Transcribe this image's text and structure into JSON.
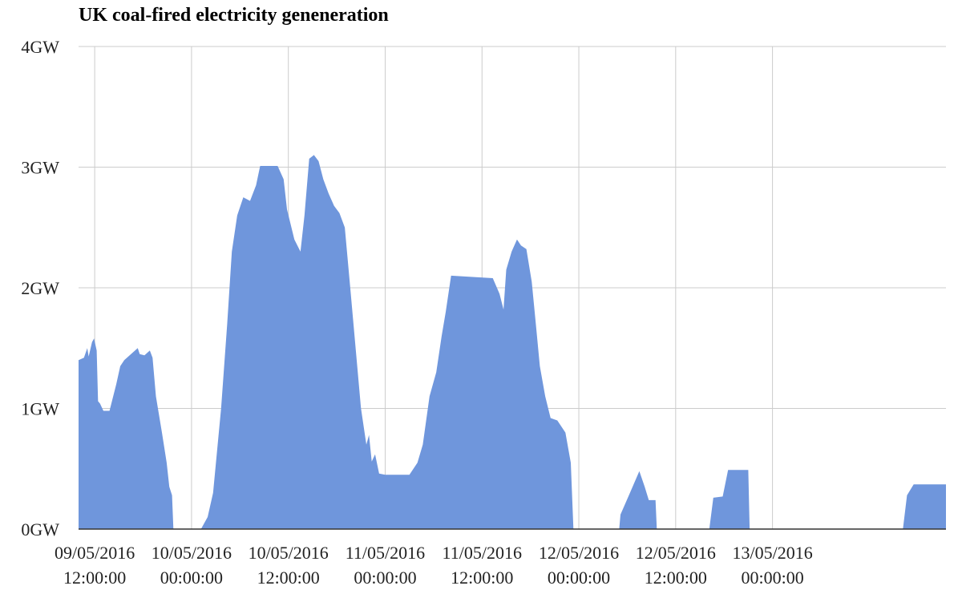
{
  "chart_data": {
    "type": "area",
    "title": "UK coal-fired electricity geneneration",
    "xlabel": "",
    "ylabel": "",
    "unit": "GW",
    "ylim": [
      0,
      4
    ],
    "grid": true,
    "colors": {
      "fill": "#6f96dc",
      "axis": "#333333",
      "grid": "#cccccc"
    },
    "y_ticks": [
      {
        "value": 0,
        "label": "0GW"
      },
      {
        "value": 1,
        "label": "1GW"
      },
      {
        "value": 2,
        "label": "2GW"
      },
      {
        "value": 3,
        "label": "3GW"
      },
      {
        "value": 4,
        "label": "4GW"
      }
    ],
    "x_range": [
      "2016-05-09 10:00",
      "2016-05-13 21:30"
    ],
    "x_ticks": [
      {
        "x": "2016-05-09 12:00",
        "date": "09/05/2016",
        "time": "12:00:00"
      },
      {
        "x": "2016-05-10 00:00",
        "date": "10/05/2016",
        "time": "00:00:00"
      },
      {
        "x": "2016-05-10 12:00",
        "date": "10/05/2016",
        "time": "12:00:00"
      },
      {
        "x": "2016-05-11 00:00",
        "date": "11/05/2016",
        "time": "00:00:00"
      },
      {
        "x": "2016-05-11 12:00",
        "date": "11/05/2016",
        "time": "12:00:00"
      },
      {
        "x": "2016-05-12 00:00",
        "date": "12/05/2016",
        "time": "00:00:00"
      },
      {
        "x": "2016-05-12 12:00",
        "date": "12/05/2016",
        "time": "12:00:00"
      },
      {
        "x": "2016-05-13 00:00",
        "date": "13/05/2016",
        "time": "00:00:00"
      }
    ],
    "series": [
      {
        "points": [
          [
            "2016-05-09 10:00",
            1.4
          ],
          [
            "2016-05-09 10:40",
            1.42
          ],
          [
            "2016-05-09 11:05",
            1.5
          ],
          [
            "2016-05-09 11:15",
            1.43
          ],
          [
            "2016-05-09 11:40",
            1.55
          ],
          [
            "2016-05-09 11:55",
            1.58
          ],
          [
            "2016-05-09 12:15",
            1.48
          ],
          [
            "2016-05-09 12:25",
            1.06
          ],
          [
            "2016-05-09 12:40",
            1.04
          ],
          [
            "2016-05-09 13:05",
            0.98
          ],
          [
            "2016-05-09 13:50",
            0.98
          ],
          [
            "2016-05-09 14:40",
            1.2
          ],
          [
            "2016-05-09 15:10",
            1.35
          ],
          [
            "2016-05-09 15:40",
            1.4
          ],
          [
            "2016-05-09 16:30",
            1.45
          ],
          [
            "2016-05-09 17:20",
            1.5
          ],
          [
            "2016-05-09 17:35",
            1.45
          ],
          [
            "2016-05-09 18:10",
            1.44
          ],
          [
            "2016-05-09 18:50",
            1.48
          ],
          [
            "2016-05-09 19:10",
            1.42
          ],
          [
            "2016-05-09 19:35",
            1.1
          ],
          [
            "2016-05-09 20:20",
            0.8
          ],
          [
            "2016-05-09 20:55",
            0.55
          ],
          [
            "2016-05-09 21:15",
            0.35
          ],
          [
            "2016-05-09 21:35",
            0.28
          ],
          [
            "2016-05-09 21:45",
            0
          ],
          [
            "2016-05-10 01:10",
            0
          ],
          [
            "2016-05-10 02:00",
            0.1
          ],
          [
            "2016-05-10 02:40",
            0.3
          ],
          [
            "2016-05-10 03:40",
            1.0
          ],
          [
            "2016-05-10 04:25",
            1.7
          ],
          [
            "2016-05-10 05:00",
            2.3
          ],
          [
            "2016-05-10 05:40",
            2.6
          ],
          [
            "2016-05-10 06:25",
            2.75
          ],
          [
            "2016-05-10 07:15",
            2.72
          ],
          [
            "2016-05-10 08:00",
            2.85
          ],
          [
            "2016-05-10 08:30",
            3.01
          ],
          [
            "2016-05-10 10:40",
            3.01
          ],
          [
            "2016-05-10 11:25",
            2.9
          ],
          [
            "2016-05-10 11:50",
            2.65
          ],
          [
            "2016-05-10 12:45",
            2.4
          ],
          [
            "2016-05-10 13:30",
            2.3
          ],
          [
            "2016-05-10 14:00",
            2.6
          ],
          [
            "2016-05-10 14:35",
            3.07
          ],
          [
            "2016-05-10 15:10",
            3.1
          ],
          [
            "2016-05-10 15:45",
            3.05
          ],
          [
            "2016-05-10 16:20",
            2.9
          ],
          [
            "2016-05-10 17:00",
            2.78
          ],
          [
            "2016-05-10 17:40",
            2.68
          ],
          [
            "2016-05-10 18:20",
            2.62
          ],
          [
            "2016-05-10 19:00",
            2.5
          ],
          [
            "2016-05-10 19:40",
            2.0
          ],
          [
            "2016-05-10 20:20",
            1.5
          ],
          [
            "2016-05-10 21:00",
            1.0
          ],
          [
            "2016-05-10 21:40",
            0.7
          ],
          [
            "2016-05-10 22:00",
            0.78
          ],
          [
            "2016-05-10 22:20",
            0.56
          ],
          [
            "2016-05-10 22:45",
            0.62
          ],
          [
            "2016-05-10 23:15",
            0.46
          ],
          [
            "2016-05-11 00:00",
            0.45
          ],
          [
            "2016-05-11 03:00",
            0.45
          ],
          [
            "2016-05-11 04:00",
            0.55
          ],
          [
            "2016-05-11 04:40",
            0.7
          ],
          [
            "2016-05-11 05:30",
            1.1
          ],
          [
            "2016-05-11 06:20",
            1.3
          ],
          [
            "2016-05-11 07:00",
            1.6
          ],
          [
            "2016-05-11 07:30",
            1.8
          ],
          [
            "2016-05-11 08:10",
            2.1
          ],
          [
            "2016-05-11 13:20",
            2.08
          ],
          [
            "2016-05-11 14:10",
            1.95
          ],
          [
            "2016-05-11 14:40",
            1.82
          ],
          [
            "2016-05-11 15:00",
            2.15
          ],
          [
            "2016-05-11 15:40",
            2.3
          ],
          [
            "2016-05-11 16:20",
            2.4
          ],
          [
            "2016-05-11 16:50",
            2.35
          ],
          [
            "2016-05-11 17:30",
            2.32
          ],
          [
            "2016-05-11 18:10",
            2.05
          ],
          [
            "2016-05-11 18:40",
            1.7
          ],
          [
            "2016-05-11 19:10",
            1.35
          ],
          [
            "2016-05-11 19:50",
            1.1
          ],
          [
            "2016-05-11 20:30",
            0.92
          ],
          [
            "2016-05-11 21:20",
            0.9
          ],
          [
            "2016-05-11 22:20",
            0.8
          ],
          [
            "2016-05-11 23:00",
            0.55
          ],
          [
            "2016-05-11 23:20",
            0
          ],
          [
            "2016-05-12 05:00",
            0
          ],
          [
            "2016-05-12 05:10",
            0.12
          ],
          [
            "2016-05-12 06:20",
            0.3
          ],
          [
            "2016-05-12 07:30",
            0.48
          ],
          [
            "2016-05-12 08:10",
            0.35
          ],
          [
            "2016-05-12 08:40",
            0.24
          ],
          [
            "2016-05-12 09:30",
            0.24
          ],
          [
            "2016-05-12 09:40",
            0
          ],
          [
            "2016-05-12 16:10",
            0
          ],
          [
            "2016-05-12 16:40",
            0.26
          ],
          [
            "2016-05-12 17:50",
            0.27
          ],
          [
            "2016-05-12 18:30",
            0.49
          ],
          [
            "2016-05-12 21:00",
            0.49
          ],
          [
            "2016-05-12 21:10",
            0
          ],
          [
            "2016-05-13 16:10",
            0
          ],
          [
            "2016-05-13 16:40",
            0.28
          ],
          [
            "2016-05-13 17:30",
            0.37
          ],
          [
            "2016-05-13 21:30",
            0.37
          ]
        ]
      }
    ]
  }
}
